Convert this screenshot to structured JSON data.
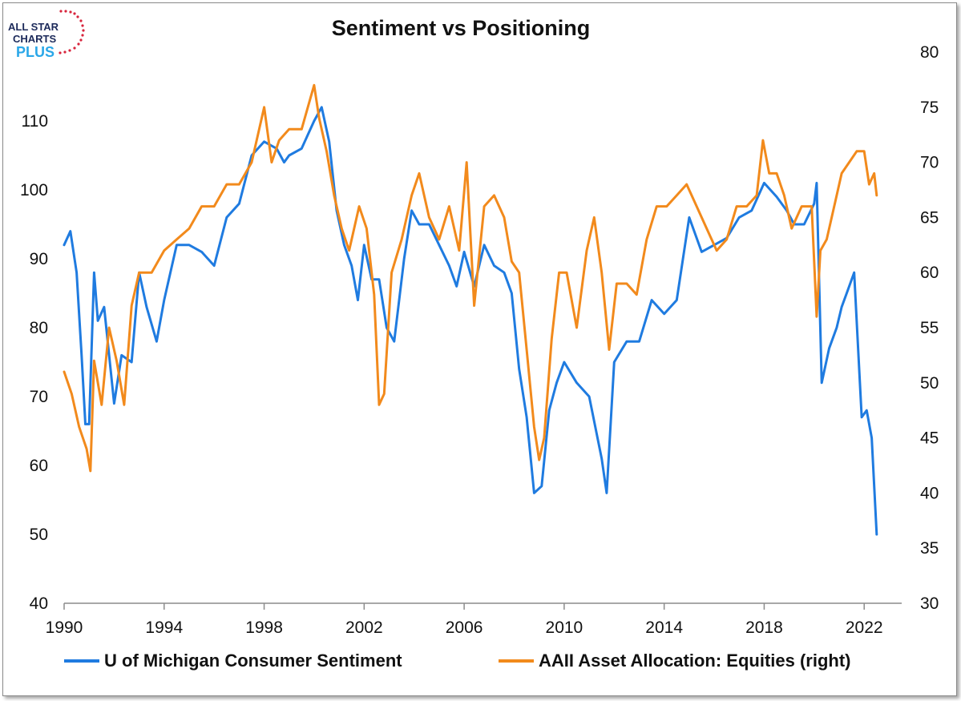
{
  "logo": {
    "line1": "ALL STAR",
    "line2": "CHARTS",
    "line3": "PLUS"
  },
  "chart_data": {
    "type": "line",
    "title": "Sentiment vs Positioning",
    "xlabel": "",
    "ylabel": "",
    "x_ticks": [
      "1990",
      "1994",
      "1998",
      "2002",
      "2006",
      "2010",
      "2014",
      "2018",
      "2022"
    ],
    "xlim": [
      1990,
      2023.5
    ],
    "y_left": {
      "lim": [
        40,
        120
      ],
      "ticks": [
        40,
        50,
        60,
        70,
        80,
        90,
        100,
        110
      ]
    },
    "y_right": {
      "lim": [
        30,
        80
      ],
      "ticks": [
        30,
        35,
        40,
        45,
        50,
        55,
        60,
        65,
        70,
        75,
        80
      ]
    },
    "grid": false,
    "legend_position": "bottom",
    "series": [
      {
        "name": "U of Michigan Consumer Sentiment",
        "axis": "left",
        "color": "#1f7be0",
        "x": [
          1990.0,
          1990.25,
          1990.5,
          1990.7,
          1990.85,
          1991.0,
          1991.2,
          1991.35,
          1991.6,
          1992.0,
          1992.3,
          1992.7,
          1993.0,
          1993.3,
          1993.7,
          1994.0,
          1994.5,
          1995.0,
          1995.5,
          1996.0,
          1996.5,
          1997.0,
          1997.5,
          1998.0,
          1998.5,
          1998.8,
          1999.0,
          1999.5,
          2000.0,
          2000.3,
          2000.6,
          2000.9,
          2001.2,
          2001.5,
          2001.75,
          2002.0,
          2002.3,
          2002.6,
          2002.9,
          2003.2,
          2003.6,
          2003.9,
          2004.2,
          2004.6,
          2005.0,
          2005.4,
          2005.7,
          2006.0,
          2006.4,
          2006.8,
          2007.2,
          2007.6,
          2007.9,
          2008.2,
          2008.5,
          2008.8,
          2009.1,
          2009.4,
          2009.7,
          2010.0,
          2010.5,
          2011.0,
          2011.5,
          2011.7,
          2012.0,
          2012.5,
          2013.0,
          2013.5,
          2014.0,
          2014.5,
          2015.0,
          2015.5,
          2016.0,
          2016.5,
          2017.0,
          2017.5,
          2018.0,
          2018.5,
          2018.9,
          2019.2,
          2019.6,
          2020.0,
          2020.1,
          2020.3,
          2020.6,
          2020.9,
          2021.1,
          2021.3,
          2021.6,
          2021.9,
          2022.1,
          2022.3,
          2022.5
        ],
        "values": [
          92,
          94,
          88,
          76,
          66,
          66,
          88,
          81,
          83,
          69,
          76,
          75,
          88,
          83,
          78,
          84,
          92,
          92,
          91,
          89,
          96,
          98,
          105,
          107,
          106,
          104,
          105,
          106,
          110,
          112,
          107,
          97,
          92,
          89,
          84,
          92,
          87,
          87,
          80,
          78,
          90,
          97,
          95,
          95,
          92,
          89,
          86,
          91,
          86,
          92,
          89,
          88,
          85,
          74,
          67,
          56,
          57,
          68,
          72,
          75,
          72,
          70,
          61,
          56,
          75,
          78,
          78,
          84,
          82,
          84,
          96,
          91,
          92,
          93,
          96,
          97,
          101,
          99,
          97,
          95,
          95,
          98,
          101,
          72,
          77,
          80,
          83,
          85,
          88,
          67,
          68,
          64,
          50
        ]
      },
      {
        "name": "AAII Asset Allocation: Equities (right)",
        "axis": "right",
        "color": "#f28a1c",
        "x": [
          1990.0,
          1990.3,
          1990.6,
          1990.9,
          1991.05,
          1991.2,
          1991.5,
          1991.8,
          1992.1,
          1992.4,
          1992.7,
          1993.0,
          1993.5,
          1994.0,
          1994.5,
          1995.0,
          1995.5,
          1996.0,
          1996.5,
          1997.0,
          1997.5,
          1998.0,
          1998.3,
          1998.6,
          1999.0,
          1999.5,
          2000.0,
          2000.2,
          2000.5,
          2000.8,
          2001.1,
          2001.4,
          2001.8,
          2002.1,
          2002.4,
          2002.6,
          2002.8,
          2003.1,
          2003.5,
          2003.9,
          2004.2,
          2004.6,
          2005.0,
          2005.4,
          2005.8,
          2006.1,
          2006.4,
          2006.8,
          2007.2,
          2007.6,
          2007.9,
          2008.2,
          2008.5,
          2008.8,
          2009.0,
          2009.2,
          2009.5,
          2009.8,
          2010.1,
          2010.5,
          2010.9,
          2011.2,
          2011.5,
          2011.8,
          2012.1,
          2012.5,
          2012.9,
          2013.3,
          2013.7,
          2014.1,
          2014.5,
          2014.9,
          2015.3,
          2015.7,
          2016.1,
          2016.5,
          2016.9,
          2017.3,
          2017.7,
          2017.95,
          2018.2,
          2018.5,
          2018.8,
          2019.1,
          2019.5,
          2019.9,
          2020.1,
          2020.25,
          2020.5,
          2020.8,
          2021.1,
          2021.4,
          2021.7,
          2022.0,
          2022.2,
          2022.4,
          2022.5
        ],
        "values": [
          51,
          49,
          46,
          44,
          42,
          52,
          48,
          55,
          52,
          48,
          57,
          60,
          60,
          62,
          63,
          64,
          66,
          66,
          68,
          68,
          70,
          75,
          70,
          72,
          73,
          73,
          77,
          74,
          71,
          67,
          64,
          62,
          66,
          64,
          58,
          48,
          49,
          60,
          63,
          67,
          69,
          65,
          63,
          66,
          62,
          70,
          57,
          66,
          67,
          65,
          61,
          60,
          53,
          46,
          43,
          45,
          54,
          60,
          60,
          55,
          62,
          65,
          60,
          53,
          59,
          59,
          58,
          63,
          66,
          66,
          67,
          68,
          66,
          64,
          62,
          63,
          66,
          66,
          67,
          72,
          69,
          69,
          67,
          64,
          66,
          66,
          56,
          62,
          63,
          66,
          69,
          70,
          71,
          71,
          68,
          69,
          67
        ]
      }
    ]
  }
}
